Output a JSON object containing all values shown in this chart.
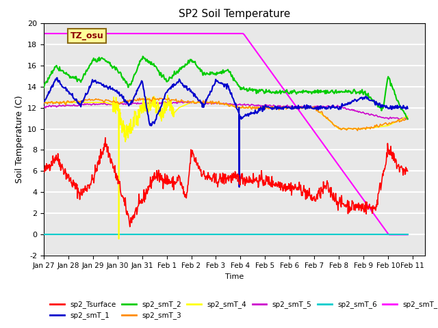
{
  "title": "SP2 Soil Temperature",
  "xlabel": "Time",
  "ylabel": "Soil Temperature (C)",
  "ylim": [
    -2,
    20
  ],
  "xlim": [
    0,
    15.5
  ],
  "annotation_text": "TZ_osu",
  "annotation_color": "#8B0000",
  "annotation_bg": "#FFFF99",
  "annotation_border": "#8B6914",
  "series_colors": {
    "sp2_Tsurface": "#FF0000",
    "sp2_smT_1": "#0000CC",
    "sp2_smT_2": "#00CC00",
    "sp2_smT_3": "#FF8C00",
    "sp2_smT_4": "#FFFF00",
    "sp2_smT_5": "#CC00CC",
    "sp2_smT_6": "#00CCCC",
    "sp2_smT_7": "#FF00FF"
  },
  "tick_labels": [
    "Jan 27",
    "Jan 28",
    "Jan 29",
    "Jan 30",
    "Jan 31",
    "Feb 1",
    "Feb 2",
    "Feb 3",
    "Feb 4",
    "Feb 5",
    "Feb 6",
    "Feb 7",
    "Feb 8",
    "Feb 9",
    "Feb 10",
    "Feb 11"
  ],
  "tick_positions": [
    0,
    1,
    2,
    3,
    4,
    5,
    6,
    7,
    8,
    9,
    10,
    11,
    12,
    13,
    14,
    15
  ],
  "background_color": "#E8E8E8",
  "grid_color": "#FFFFFF",
  "legend_lw": 2.0,
  "surf_xp": [
    0,
    0.5,
    1,
    1.5,
    2,
    2.5,
    3,
    3.5,
    4,
    4.5,
    5,
    5.3,
    5.5,
    5.8,
    6,
    6.5,
    7,
    7.5,
    8,
    8.5,
    9,
    9.5,
    10,
    10.5,
    11,
    11.5,
    12,
    12.5,
    13,
    13.5,
    14,
    14.5,
    14.8
  ],
  "surf_fp": [
    5.9,
    7.4,
    5.4,
    3.8,
    5.2,
    8.7,
    5.2,
    1.2,
    3.2,
    5.6,
    5.2,
    4.8,
    5.4,
    3.2,
    7.8,
    5.6,
    5.1,
    5.4,
    5.3,
    5.2,
    5.1,
    4.8,
    4.5,
    4.3,
    3.3,
    4.6,
    3.0,
    2.7,
    2.6,
    2.5,
    8.0,
    6.2,
    6.0
  ],
  "smT1_xp": [
    0,
    0.5,
    1,
    1.5,
    2,
    2.5,
    3,
    3.5,
    4,
    4.3,
    4.5,
    5,
    5.5,
    6,
    6.5,
    7,
    7.5,
    8,
    9,
    10,
    11,
    12,
    13,
    14,
    14.8
  ],
  "smT1_fp": [
    12.5,
    14.7,
    13.5,
    12.2,
    14.5,
    14.0,
    13.5,
    12.2,
    14.5,
    10.5,
    10.6,
    13.5,
    14.5,
    13.5,
    12.2,
    14.5,
    14.0,
    11.0,
    12.0,
    12.0,
    12.0,
    12.0,
    13.0,
    12.0,
    12.0
  ],
  "smT2_xp": [
    0,
    0.5,
    1,
    1.5,
    2,
    2.5,
    3,
    3.5,
    4,
    4.5,
    5,
    5.5,
    6,
    6.5,
    7,
    7.5,
    8,
    9,
    10,
    11,
    12,
    13,
    13.8,
    14,
    14.5,
    14.8
  ],
  "smT2_fp": [
    14.0,
    15.9,
    15.0,
    14.5,
    16.5,
    16.5,
    15.5,
    14.0,
    16.8,
    16.0,
    14.5,
    15.5,
    16.5,
    15.2,
    15.2,
    15.5,
    13.8,
    13.5,
    13.5,
    13.5,
    13.5,
    13.5,
    11.8,
    15.0,
    12.0,
    11.0
  ],
  "smT3_xp": [
    0,
    1,
    2,
    3,
    4,
    5,
    6,
    7,
    8,
    9,
    10,
    11,
    12,
    13,
    14,
    14.8
  ],
  "smT3_fp": [
    12.5,
    12.5,
    12.8,
    12.5,
    12.8,
    12.8,
    12.5,
    12.5,
    12.0,
    12.0,
    12.0,
    12.0,
    10.0,
    10.0,
    10.5,
    11.0
  ],
  "smT4_xp": [
    0,
    2.5,
    2.8,
    3.0,
    3.1,
    3.2,
    3.3,
    3.4,
    3.5,
    3.6,
    3.7,
    3.8,
    3.9,
    4.0,
    4.1,
    4.2,
    4.3,
    4.4,
    4.5,
    4.6,
    4.7,
    4.8,
    4.9,
    5.0,
    5.1,
    5.2,
    5.3,
    5.5,
    6,
    7,
    8,
    9,
    10,
    11,
    12,
    13,
    14,
    14.8
  ],
  "smT4_fp": [
    12.5,
    12.5,
    12.3,
    12.2,
    11.0,
    10.3,
    9.5,
    9.8,
    10.2,
    10.5,
    11.0,
    10.8,
    11.5,
    12.0,
    12.5,
    12.2,
    12.3,
    12.5,
    12.3,
    12.0,
    11.8,
    11.5,
    12.0,
    12.5,
    12.3,
    12.1,
    11.5,
    12.0,
    12.5,
    12.5,
    12.0,
    12.0,
    12.0,
    12.0,
    10.0,
    10.0,
    10.3,
    11.2
  ],
  "smT5_xp": [
    0,
    2,
    4,
    6,
    8,
    10,
    11,
    12,
    13,
    14,
    14.8
  ],
  "smT5_fp": [
    12.1,
    12.3,
    12.4,
    12.5,
    12.3,
    12.1,
    12.1,
    12.1,
    11.5,
    11.0,
    11.0
  ],
  "smT7_x": [
    0,
    8.1,
    8.15,
    14.0,
    14.05,
    14.8
  ],
  "smT7_y": [
    19.0,
    19.0,
    18.9,
    0.1,
    0.0,
    0.0
  ]
}
